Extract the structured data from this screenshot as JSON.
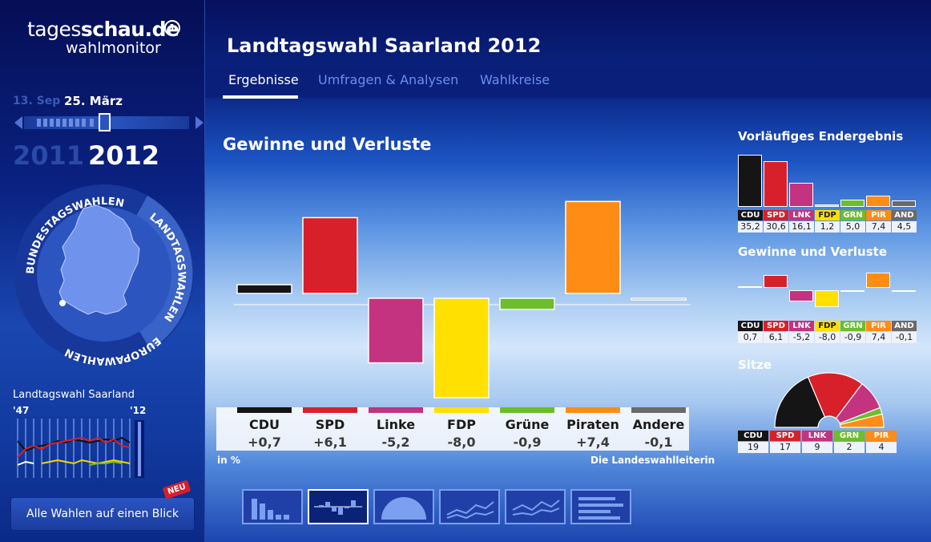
{
  "brand": {
    "name_light": "tages",
    "name_bold": "schau.de",
    "ard_mark": "1",
    "sub": "wahlmonitor"
  },
  "header": {
    "title": "Landtagswahl Saarland 2012"
  },
  "tabs": [
    "Ergebnisse",
    "Umfragen & Analysen",
    "Wahlkreise"
  ],
  "timeline": {
    "date_prev": "13. Sep",
    "date_current": "25. März",
    "year_prev": "2011",
    "year_current": "2012"
  },
  "wheel": {
    "labels": [
      "BUNDESTAGSWAHLEN",
      "LANDTAGSWAHLEN",
      "EUROPAWAHLEN"
    ]
  },
  "mini_chart": {
    "title": "Landtagswahl Saarland",
    "start": "'47",
    "end": "'12"
  },
  "all_button": {
    "label": "Alle Wahlen auf einen Blick",
    "badge": "NEU"
  },
  "main_chart_title": "Gewinne und Verluste",
  "unit_note": "in %",
  "source": "Die Landeswahlleiterin",
  "colors": {
    "CDU": "#151515",
    "SPD": "#d8202a",
    "Linke": "#c3337f",
    "FDP": "#ffe000",
    "Gruene": "#6cbe2a",
    "Piraten": "#ff8c14",
    "Andere": "#6a6a6a"
  },
  "chart_data": [
    {
      "type": "bar",
      "title": "Gewinne und Verluste",
      "categories": [
        "CDU",
        "SPD",
        "Linke",
        "FDP",
        "Grüne",
        "Piraten",
        "Andere"
      ],
      "values": [
        0.7,
        6.1,
        -5.2,
        -8.0,
        -0.9,
        7.4,
        -0.1
      ],
      "value_labels": [
        "+0,7",
        "+6,1",
        "-5,2",
        "-8,0",
        "-0,9",
        "+7,4",
        "-0,1"
      ],
      "ylim": [
        -8,
        8
      ]
    },
    {
      "type": "bar",
      "title": "Vorläufiges Endergebnis",
      "categories": [
        "CDU",
        "SPD",
        "LNK",
        "FDP",
        "GRN",
        "PIR",
        "AND"
      ],
      "values": [
        35.2,
        30.6,
        16.1,
        1.2,
        5.0,
        7.4,
        4.5
      ],
      "value_labels": [
        "35,2",
        "30,6",
        "16,1",
        "1,2",
        "5,0",
        "7,4",
        "4,5"
      ]
    },
    {
      "type": "bar",
      "title": "Gewinne und Verluste",
      "categories": [
        "CDU",
        "SPD",
        "LNK",
        "FDP",
        "GRN",
        "PIR",
        "AND"
      ],
      "values": [
        0.7,
        6.1,
        -5.2,
        -8.0,
        -0.9,
        7.4,
        -0.1
      ],
      "value_labels": [
        "0,7",
        "6,1",
        "-5,2",
        "-8,0",
        "-0,9",
        "7,4",
        "-0,1"
      ]
    },
    {
      "type": "pie",
      "title": "Sitze",
      "categories": [
        "CDU",
        "SPD",
        "LNK",
        "GRN",
        "PIR"
      ],
      "values": [
        19,
        17,
        9,
        2,
        4
      ]
    }
  ]
}
